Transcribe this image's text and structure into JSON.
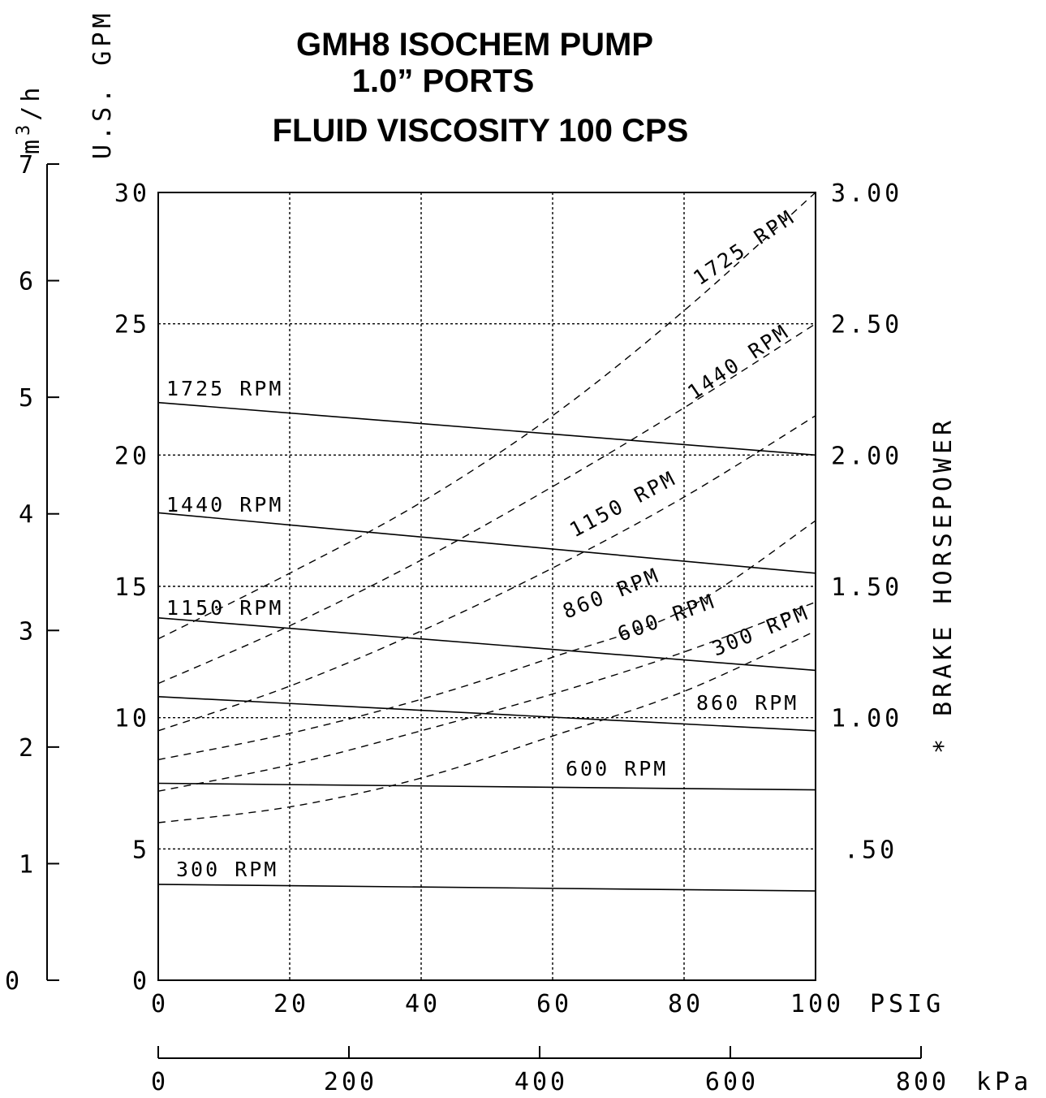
{
  "chart_data": {
    "type": "line",
    "title": [
      "GMH8 ISOCHEM PUMP",
      "1.0” PORTS",
      "FLUID VISCOSITY 100 CPS"
    ],
    "x_axis": {
      "label": "PSIG",
      "range": [
        0,
        100
      ],
      "ticks": [
        "0",
        "20",
        "40",
        "60",
        "80",
        "100"
      ]
    },
    "x2_axis": {
      "label": "kPa",
      "range": [
        0,
        800
      ],
      "ticks": [
        "0",
        "200",
        "400",
        "600",
        "800"
      ]
    },
    "y_axis": {
      "label": "U.S. GPM",
      "range": [
        0,
        30
      ],
      "ticks": [
        "0",
        "5",
        "10",
        "15",
        "20",
        "25",
        "30"
      ]
    },
    "y_m3h_axis": {
      "label_m": "m",
      "label_sup": "3",
      "label_h": "/h",
      "range": [
        0,
        7
      ],
      "ticks": [
        "0",
        "1",
        "2",
        "3",
        "4",
        "5",
        "6",
        "7"
      ]
    },
    "y2_axis": {
      "label": "* BRAKE HORSEPOWER",
      "range": [
        0,
        3
      ],
      "ticks": [
        ".50",
        "1.00",
        "1.50",
        "2.00",
        "2.50",
        "3.00"
      ],
      "tick_values": [
        0.5,
        1.0,
        1.5,
        2.0,
        2.5,
        3.0
      ]
    },
    "grid": true,
    "flow_series": [
      {
        "name": "1725 RPM",
        "x": [
          0,
          100
        ],
        "y": [
          22.0,
          20.0
        ]
      },
      {
        "name": "1440 RPM",
        "x": [
          0,
          100
        ],
        "y": [
          17.8,
          15.5
        ]
      },
      {
        "name": "1150 RPM",
        "x": [
          0,
          100
        ],
        "y": [
          13.8,
          11.8
        ]
      },
      {
        "name": "860 RPM",
        "x": [
          0,
          100
        ],
        "y": [
          10.8,
          9.5
        ]
      },
      {
        "name": "600 RPM",
        "x": [
          0,
          100
        ],
        "y": [
          7.5,
          7.25
        ]
      },
      {
        "name": "300 RPM",
        "x": [
          0,
          100
        ],
        "y": [
          3.65,
          3.4
        ]
      }
    ],
    "hp_series": [
      {
        "name": "1725 RPM",
        "x": [
          0,
          20,
          40,
          60,
          80,
          100
        ],
        "y": [
          1.3,
          1.55,
          1.82,
          2.15,
          2.55,
          3.0
        ]
      },
      {
        "name": "1440 RPM",
        "x": [
          0,
          20,
          40,
          60,
          80,
          100
        ],
        "y": [
          1.13,
          1.35,
          1.6,
          1.88,
          2.18,
          2.5
        ]
      },
      {
        "name": "1150 RPM",
        "x": [
          0,
          20,
          40,
          60,
          80,
          100
        ],
        "y": [
          0.95,
          1.12,
          1.33,
          1.57,
          1.84,
          2.15
        ]
      },
      {
        "name": "860 RPM",
        "x": [
          0,
          20,
          40,
          60,
          80,
          100
        ],
        "y": [
          0.84,
          0.94,
          1.07,
          1.23,
          1.41,
          1.75
        ]
      },
      {
        "name": "600 RPM",
        "x": [
          0,
          20,
          40,
          60,
          80,
          100
        ],
        "y": [
          0.72,
          0.82,
          0.95,
          1.09,
          1.25,
          1.44
        ]
      },
      {
        "name": "300 RPM",
        "x": [
          0,
          20,
          40,
          60,
          80,
          100
        ],
        "y": [
          0.6,
          0.66,
          0.77,
          0.93,
          1.1,
          1.33
        ]
      }
    ]
  }
}
